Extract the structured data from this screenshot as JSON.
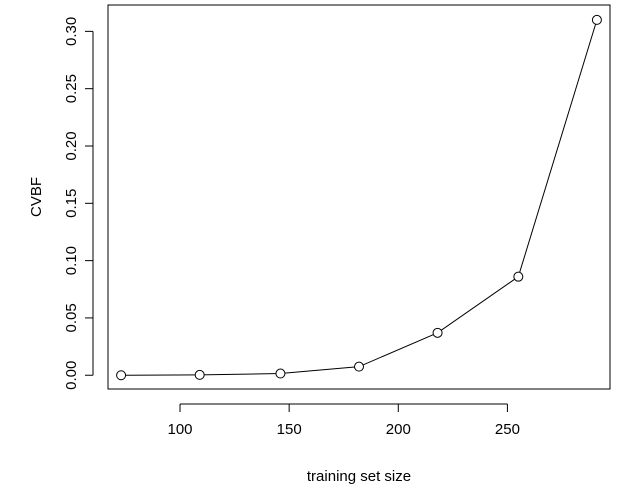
{
  "chart_data": {
    "type": "line",
    "xlabel": "training set size",
    "ylabel": "CVBF",
    "xlim": [
      67,
      297
    ],
    "ylim": [
      -0.012,
      0.323
    ],
    "x_ticks": [
      100,
      150,
      200,
      250
    ],
    "y_ticks": [
      0.0,
      0.05,
      0.1,
      0.15,
      0.2,
      0.25,
      0.3
    ],
    "x_tick_labels": [
      "100",
      "150",
      "200",
      "250"
    ],
    "y_tick_labels": [
      "0.00",
      "0.05",
      "0.10",
      "0.15",
      "0.20",
      "0.25",
      "0.30"
    ],
    "grid": false,
    "marker": "open-circle",
    "series": [
      {
        "x": [
          73,
          109,
          146,
          182,
          218,
          255,
          291
        ],
        "y": [
          0.0,
          0.0003,
          0.0015,
          0.0075,
          0.037,
          0.086,
          0.31
        ]
      }
    ]
  }
}
